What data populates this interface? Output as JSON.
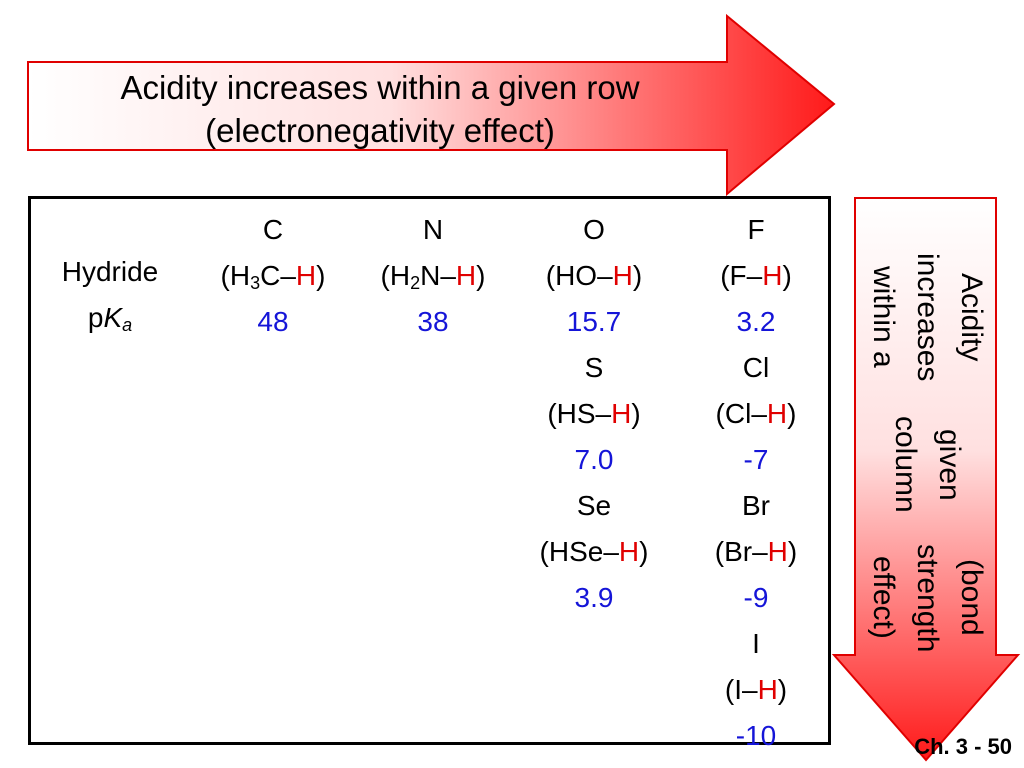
{
  "top_arrow": {
    "line1": "Acidity increases within a given row",
    "line2": "(electronegativity effect)"
  },
  "side_arrow": {
    "line1": "Acidity increases within a",
    "line2": "given column",
    "line3": "(bond strength effect)"
  },
  "row_labels": {
    "hydride": "Hydride",
    "pka_p": "p",
    "pka_K": "K",
    "pka_a": "a"
  },
  "cells": {
    "C": {
      "el": "C",
      "pre": "(H",
      "sub": "3",
      "mid": "C–",
      "h": "H",
      "post": ")",
      "pka": "48"
    },
    "N": {
      "el": "N",
      "pre": "(H",
      "sub": "2",
      "mid": "N–",
      "h": "H",
      "post": ")",
      "pka": "38"
    },
    "O": {
      "el": "O",
      "pre": "(HO–",
      "h": "H",
      "post": ")",
      "pka": "15.7"
    },
    "F": {
      "el": "F",
      "pre": "(F–",
      "h": "H",
      "post": ")",
      "pka": "3.2"
    },
    "S": {
      "el": "S",
      "pre": "(HS–",
      "h": "H",
      "post": ")",
      "pka": "7.0"
    },
    "Cl": {
      "el": "Cl",
      "pre": "(Cl–",
      "h": "H",
      "post": ")",
      "pka": "-7"
    },
    "Se": {
      "el": "Se",
      "pre": "(HSe–",
      "h": "H",
      "post": ")",
      "pka": "3.9"
    },
    "Br": {
      "el": "Br",
      "pre": "(Br–",
      "h": "H",
      "post": ")",
      "pka": "-9"
    },
    "I": {
      "el": "I",
      "pre": "(I–",
      "h": "H",
      "post": ")",
      "pka": "-10"
    }
  },
  "footer": "Ch. 3 - 50",
  "colors": {
    "arrow_red": "#ff1a1a",
    "pka_blue": "#1515d8",
    "hydrogen_red": "#e00000"
  }
}
